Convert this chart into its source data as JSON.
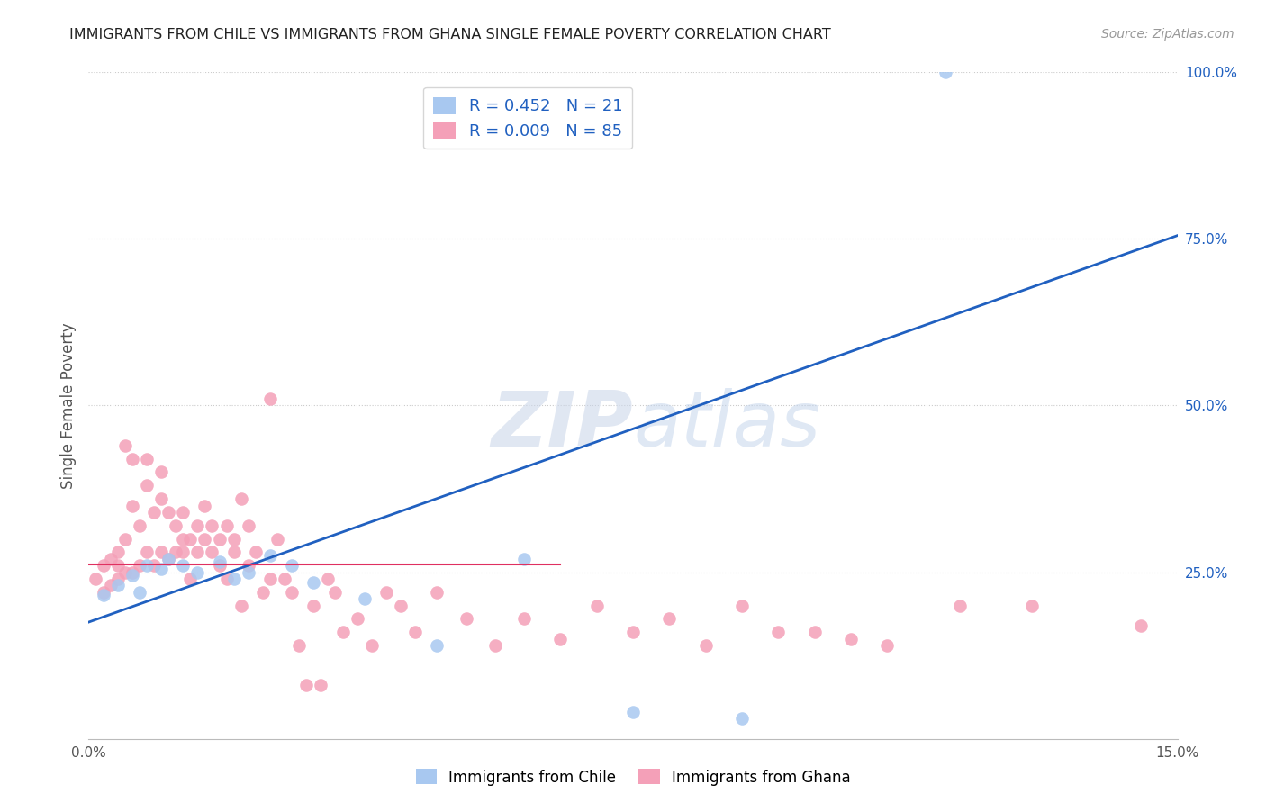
{
  "title": "IMMIGRANTS FROM CHILE VS IMMIGRANTS FROM GHANA SINGLE FEMALE POVERTY CORRELATION CHART",
  "source": "Source: ZipAtlas.com",
  "ylabel": "Single Female Poverty",
  "xlim": [
    0.0,
    0.15
  ],
  "ylim": [
    0.0,
    1.0
  ],
  "xtick_positions": [
    0.0,
    0.05,
    0.1,
    0.15
  ],
  "xtick_labels": [
    "0.0%",
    "",
    "",
    "15.0%"
  ],
  "ytick_positions": [
    0.25,
    0.5,
    0.75,
    1.0
  ],
  "ytick_labels": [
    "25.0%",
    "50.0%",
    "75.0%",
    "100.0%"
  ],
  "chile_R": 0.452,
  "chile_N": 21,
  "ghana_R": 0.009,
  "ghana_N": 85,
  "chile_color": "#a8c8f0",
  "ghana_color": "#f4a0b8",
  "chile_line_color": "#2060c0",
  "ghana_line_color": "#e03060",
  "background_color": "#ffffff",
  "watermark_color": "#c8d8f0",
  "chile_line_x": [
    0.0,
    0.15
  ],
  "chile_line_y": [
    0.175,
    0.755
  ],
  "ghana_line_x": [
    0.0,
    0.065
  ],
  "ghana_line_y": [
    0.262,
    0.262
  ],
  "chile_scatter_x": [
    0.002,
    0.004,
    0.006,
    0.007,
    0.008,
    0.01,
    0.011,
    0.013,
    0.015,
    0.018,
    0.02,
    0.022,
    0.025,
    0.028,
    0.031,
    0.038,
    0.048,
    0.06,
    0.075,
    0.09,
    0.118
  ],
  "chile_scatter_y": [
    0.215,
    0.23,
    0.245,
    0.22,
    0.26,
    0.255,
    0.27,
    0.26,
    0.25,
    0.265,
    0.24,
    0.25,
    0.275,
    0.26,
    0.235,
    0.21,
    0.14,
    0.27,
    0.04,
    0.03,
    1.0
  ],
  "ghana_scatter_x": [
    0.001,
    0.002,
    0.002,
    0.003,
    0.003,
    0.004,
    0.004,
    0.004,
    0.005,
    0.005,
    0.005,
    0.006,
    0.006,
    0.006,
    0.007,
    0.007,
    0.008,
    0.008,
    0.008,
    0.009,
    0.009,
    0.01,
    0.01,
    0.01,
    0.011,
    0.011,
    0.012,
    0.012,
    0.013,
    0.013,
    0.013,
    0.014,
    0.014,
    0.015,
    0.015,
    0.016,
    0.016,
    0.017,
    0.017,
    0.018,
    0.018,
    0.019,
    0.019,
    0.02,
    0.02,
    0.021,
    0.021,
    0.022,
    0.022,
    0.023,
    0.024,
    0.025,
    0.025,
    0.026,
    0.027,
    0.028,
    0.029,
    0.03,
    0.031,
    0.032,
    0.033,
    0.034,
    0.035,
    0.037,
    0.039,
    0.041,
    0.043,
    0.045,
    0.048,
    0.052,
    0.056,
    0.06,
    0.065,
    0.07,
    0.075,
    0.08,
    0.085,
    0.09,
    0.095,
    0.1,
    0.105,
    0.11,
    0.12,
    0.13,
    0.145
  ],
  "ghana_scatter_y": [
    0.24,
    0.22,
    0.26,
    0.27,
    0.23,
    0.26,
    0.24,
    0.28,
    0.3,
    0.25,
    0.44,
    0.35,
    0.25,
    0.42,
    0.32,
    0.26,
    0.38,
    0.28,
    0.42,
    0.34,
    0.26,
    0.4,
    0.28,
    0.36,
    0.27,
    0.34,
    0.28,
    0.32,
    0.3,
    0.34,
    0.28,
    0.3,
    0.24,
    0.32,
    0.28,
    0.3,
    0.35,
    0.32,
    0.28,
    0.3,
    0.26,
    0.32,
    0.24,
    0.28,
    0.3,
    0.36,
    0.2,
    0.32,
    0.26,
    0.28,
    0.22,
    0.24,
    0.51,
    0.3,
    0.24,
    0.22,
    0.14,
    0.08,
    0.2,
    0.08,
    0.24,
    0.22,
    0.16,
    0.18,
    0.14,
    0.22,
    0.2,
    0.16,
    0.22,
    0.18,
    0.14,
    0.18,
    0.15,
    0.2,
    0.16,
    0.18,
    0.14,
    0.2,
    0.16,
    0.16,
    0.15,
    0.14,
    0.2,
    0.2,
    0.17
  ]
}
